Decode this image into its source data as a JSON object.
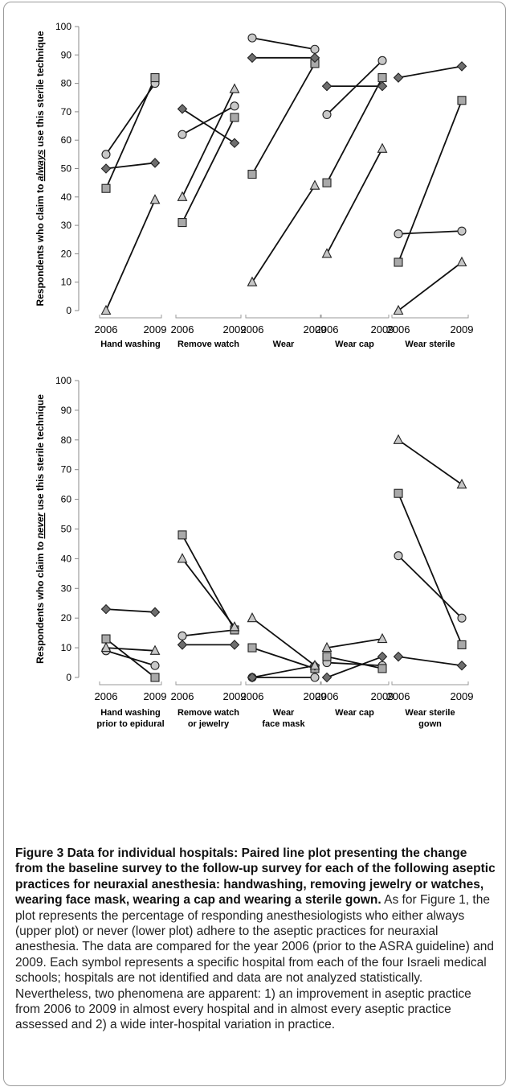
{
  "panels": [
    {
      "id": "always",
      "ylabel": {
        "before": "Respondents who claim to ",
        "emphasis": "always",
        "after": " use this sterile technique"
      },
      "yticks": [
        "0",
        "10",
        "20",
        "30",
        "40",
        "50",
        "60",
        "70",
        "80",
        "90",
        "100"
      ],
      "x_years": [
        "2006",
        "2009"
      ],
      "groups": [
        {
          "label_lines": [
            "Hand washing"
          ]
        },
        {
          "label_lines": [
            "Remove watch"
          ]
        },
        {
          "label_lines": [
            "Wear"
          ]
        },
        {
          "label_lines": [
            "Wear cap"
          ]
        },
        {
          "label_lines": [
            "Wear sterile"
          ]
        }
      ]
    },
    {
      "id": "never",
      "ylabel": {
        "before": "Respondents who claim to ",
        "emphasis": "never",
        "after": " use this sterile technique"
      },
      "yticks": [
        "0",
        "10",
        "20",
        "30",
        "40",
        "50",
        "60",
        "70",
        "80",
        "90",
        "100"
      ],
      "x_years": [
        "2006",
        "2009"
      ],
      "groups": [
        {
          "label_lines": [
            "Hand washing",
            "prior to epidural"
          ]
        },
        {
          "label_lines": [
            "Remove watch",
            "or jewelry"
          ]
        },
        {
          "label_lines": [
            "Wear",
            "face mask"
          ]
        },
        {
          "label_lines": [
            "Wear cap"
          ]
        },
        {
          "label_lines": [
            "Wear sterile",
            "gown"
          ]
        }
      ]
    }
  ],
  "chart_data": [
    {
      "type": "line",
      "panel": "upper",
      "ylim": [
        0,
        100
      ],
      "x": [
        "2006",
        "2009"
      ],
      "groups": [
        {
          "name": "Hand washing",
          "series": [
            {
              "marker": "circle",
              "values": [
                55,
                80
              ]
            },
            {
              "marker": "square",
              "values": [
                43,
                82
              ]
            },
            {
              "marker": "diamond",
              "values": [
                50,
                52
              ]
            },
            {
              "marker": "triangle",
              "values": [
                0,
                39
              ]
            }
          ]
        },
        {
          "name": "Remove watch",
          "series": [
            {
              "marker": "circle",
              "values": [
                62,
                72
              ]
            },
            {
              "marker": "square",
              "values": [
                31,
                68
              ]
            },
            {
              "marker": "diamond",
              "values": [
                71,
                59
              ]
            },
            {
              "marker": "triangle",
              "values": [
                40,
                78
              ]
            }
          ]
        },
        {
          "name": "Wear",
          "series": [
            {
              "marker": "circle",
              "values": [
                96,
                92
              ]
            },
            {
              "marker": "square",
              "values": [
                48,
                87
              ]
            },
            {
              "marker": "diamond",
              "values": [
                89,
                89
              ]
            },
            {
              "marker": "triangle",
              "values": [
                10,
                44
              ]
            }
          ]
        },
        {
          "name": "Wear cap",
          "series": [
            {
              "marker": "circle",
              "values": [
                69,
                88
              ]
            },
            {
              "marker": "square",
              "values": [
                45,
                82
              ]
            },
            {
              "marker": "diamond",
              "values": [
                79,
                79
              ]
            },
            {
              "marker": "triangle",
              "values": [
                20,
                57
              ]
            }
          ]
        },
        {
          "name": "Wear sterile",
          "series": [
            {
              "marker": "circle",
              "values": [
                27,
                28
              ]
            },
            {
              "marker": "square",
              "values": [
                17,
                74
              ]
            },
            {
              "marker": "diamond",
              "values": [
                82,
                86
              ]
            },
            {
              "marker": "triangle",
              "values": [
                0,
                17
              ]
            }
          ]
        }
      ]
    },
    {
      "type": "line",
      "panel": "lower",
      "ylim": [
        0,
        100
      ],
      "x": [
        "2006",
        "2009"
      ],
      "groups": [
        {
          "name": "Hand washing prior to epidural",
          "series": [
            {
              "marker": "circle",
              "values": [
                9,
                4
              ]
            },
            {
              "marker": "square",
              "values": [
                13,
                0
              ]
            },
            {
              "marker": "diamond",
              "values": [
                23,
                22
              ]
            },
            {
              "marker": "triangle",
              "values": [
                10,
                9
              ]
            }
          ]
        },
        {
          "name": "Remove watch or jewelry",
          "series": [
            {
              "marker": "circle",
              "values": [
                14,
                16
              ]
            },
            {
              "marker": "square",
              "values": [
                48,
                16
              ]
            },
            {
              "marker": "diamond",
              "values": [
                11,
                11
              ]
            },
            {
              "marker": "triangle",
              "values": [
                40,
                17
              ]
            }
          ]
        },
        {
          "name": "Wear face mask",
          "series": [
            {
              "marker": "circle",
              "values": [
                0,
                0
              ]
            },
            {
              "marker": "square",
              "values": [
                10,
                3
              ]
            },
            {
              "marker": "diamond",
              "values": [
                0,
                4
              ]
            },
            {
              "marker": "triangle",
              "values": [
                20,
                4
              ]
            }
          ]
        },
        {
          "name": "Wear cap",
          "series": [
            {
              "marker": "circle",
              "values": [
                5,
                4
              ]
            },
            {
              "marker": "square",
              "values": [
                7,
                3
              ]
            },
            {
              "marker": "diamond",
              "values": [
                0,
                7
              ]
            },
            {
              "marker": "triangle",
              "values": [
                10,
                13
              ]
            }
          ]
        },
        {
          "name": "Wear sterile gown",
          "series": [
            {
              "marker": "circle",
              "values": [
                41,
                20
              ]
            },
            {
              "marker": "square",
              "values": [
                62,
                11
              ]
            },
            {
              "marker": "diamond",
              "values": [
                7,
                4
              ]
            },
            {
              "marker": "triangle",
              "values": [
                80,
                65
              ]
            }
          ]
        }
      ]
    }
  ],
  "caption": {
    "bold": "Figure 3 Data for individual hospitals: Paired line plot presenting the change from the baseline survey to the follow-up survey for each of the following aseptic practices for neuraxial anesthesia: handwashing, removing jewelry or watches, wearing face mask, wearing a cap and wearing a sterile gown.",
    "text": " As for Figure 1, the plot represents the percentage of responding anesthesiologists who either always (upper plot) or never (lower plot) adhere to the aseptic practices for neuraxial anesthesia. The data are compared for the year 2006 (prior to the ASRA guideline) and 2009. Each symbol represents a specific hospital from each of the four Israeli medical schools; hospitals are not identified and data are not analyzed statistically. Nevertheless, two phenomena are apparent: 1) an improvement in aseptic practice from 2006 to 2009 in almost every hospital and in almost every aseptic practice assessed and 2) a wide inter-hospital variation in practice."
  }
}
